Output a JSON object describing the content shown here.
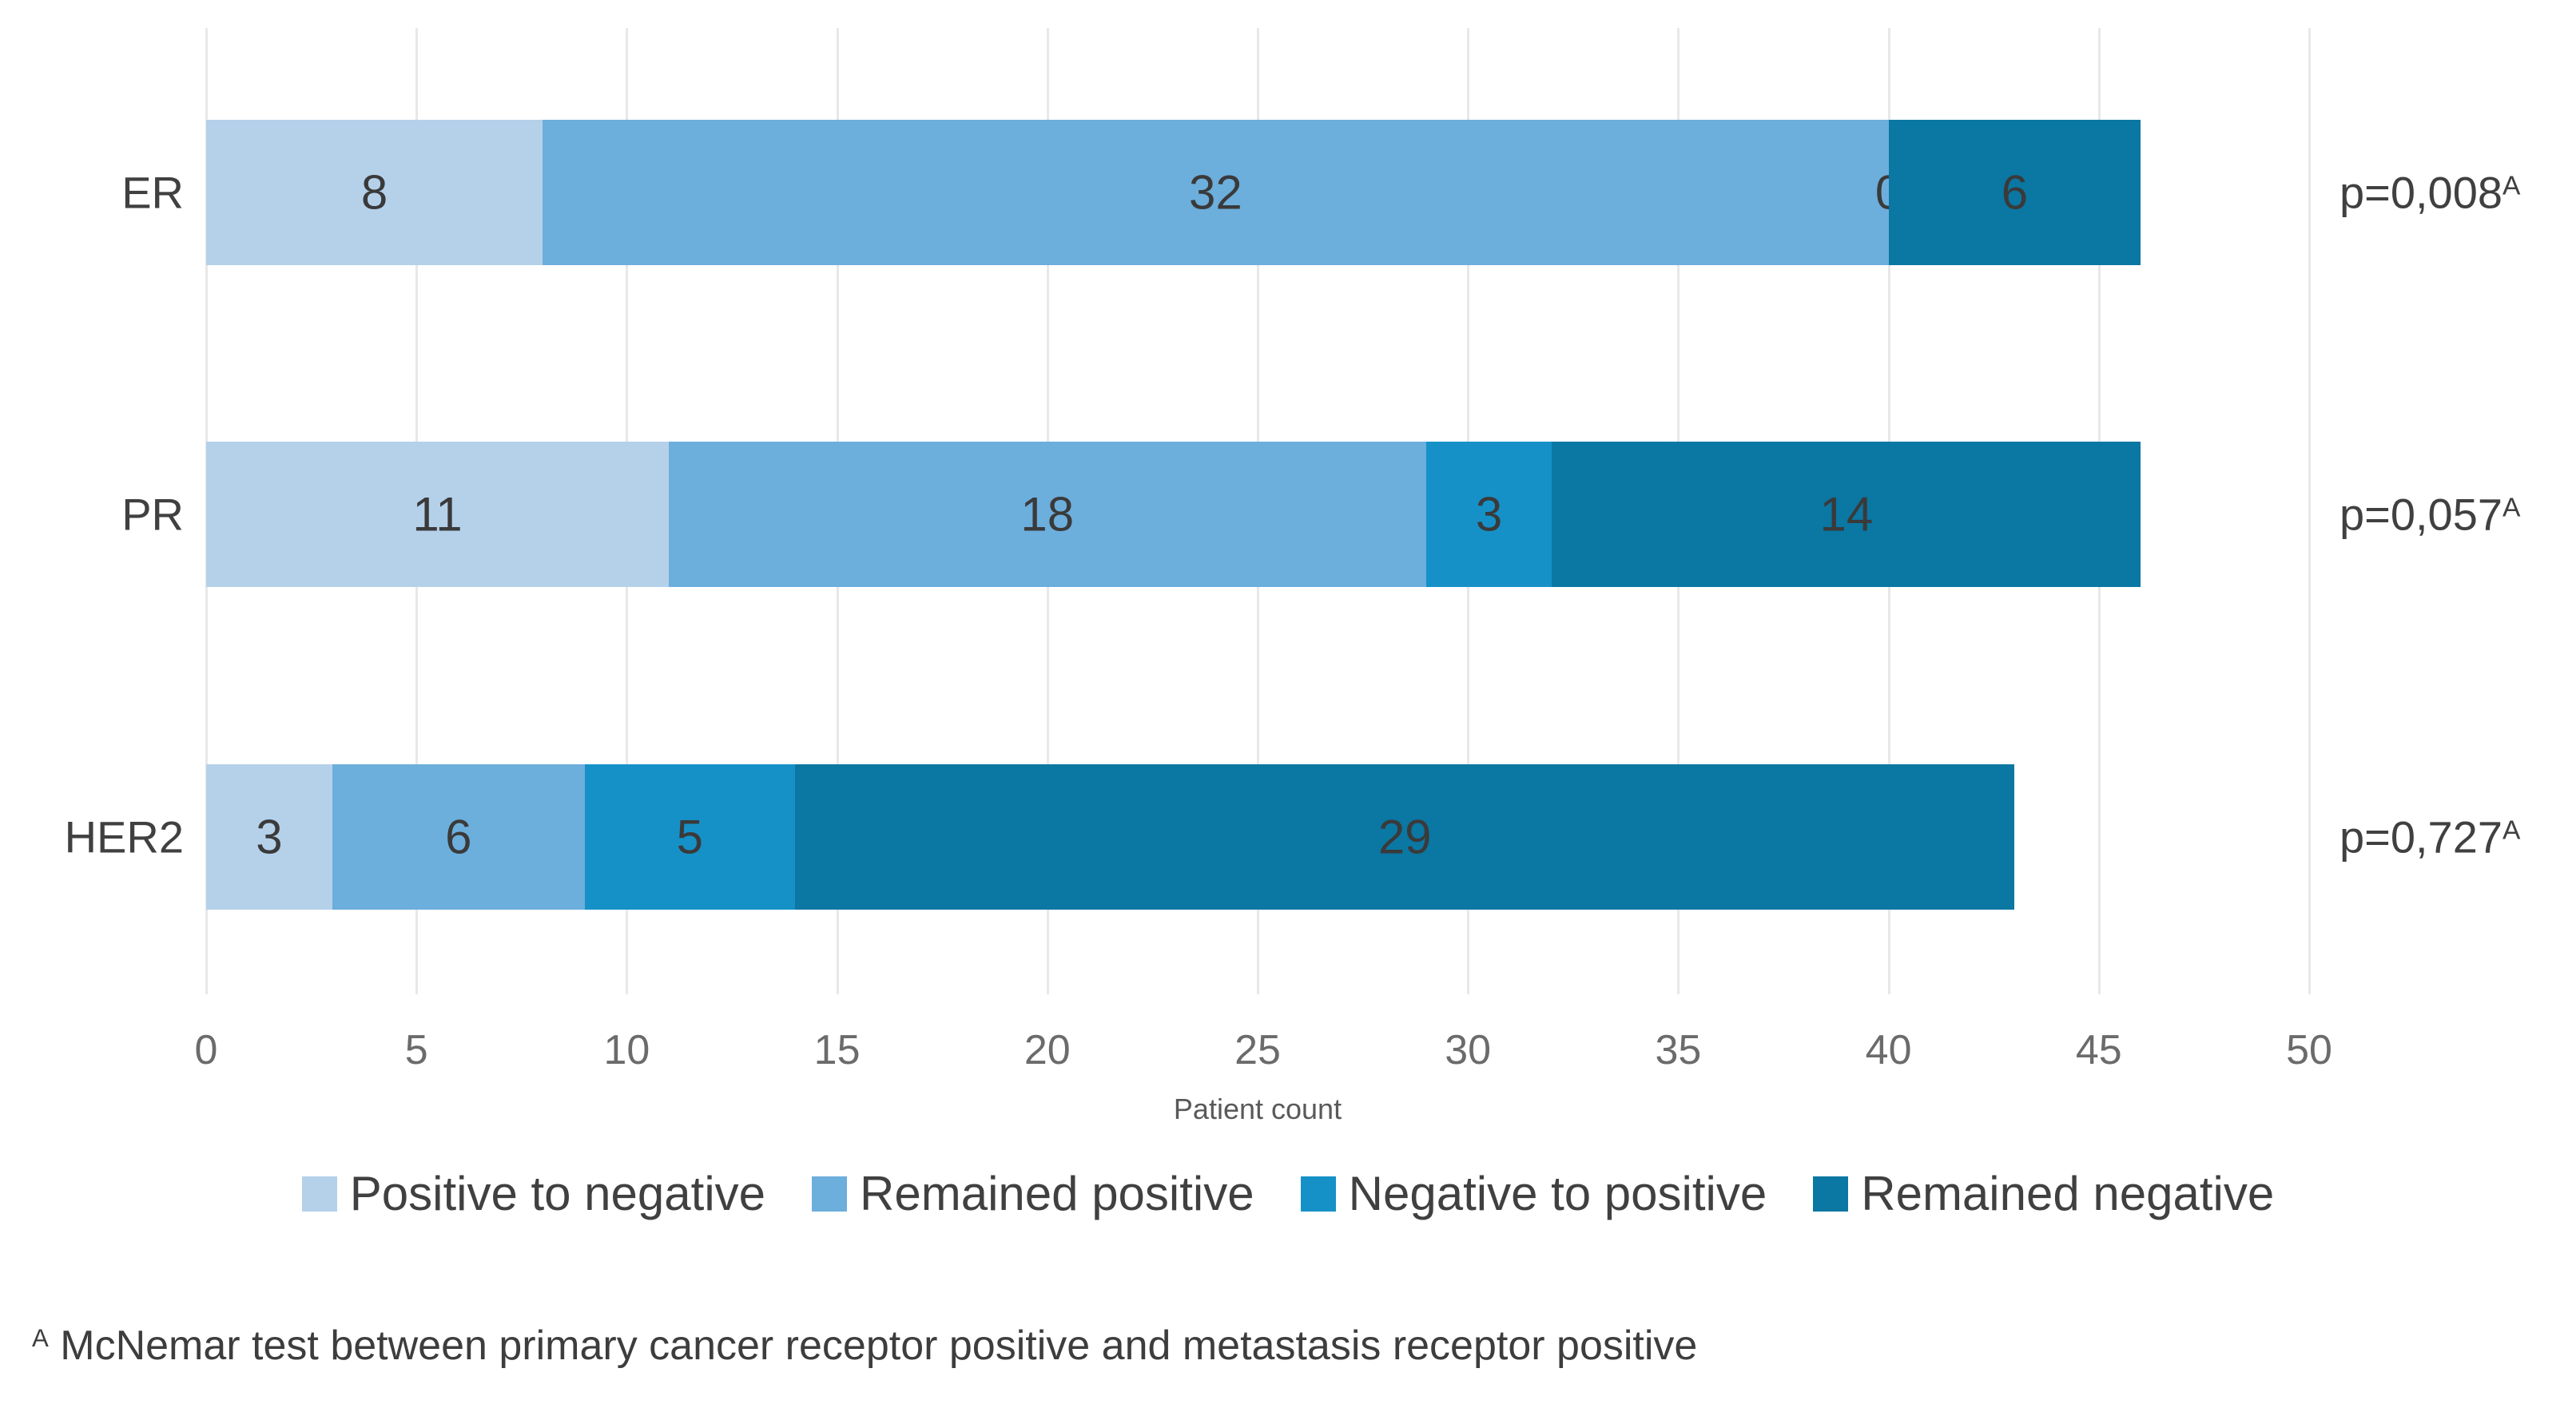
{
  "chart_data": {
    "type": "bar",
    "orientation": "horizontal",
    "stacked": true,
    "grid": true,
    "categories": [
      "ER",
      "PR",
      "HER2"
    ],
    "series": [
      {
        "name": "Positive to negative",
        "color": "#b5d1ea",
        "values": [
          8,
          11,
          3
        ]
      },
      {
        "name": "Remained positive",
        "color": "#6caedc",
        "values": [
          32,
          18,
          6
        ]
      },
      {
        "name": "Negative to positive",
        "color": "#1691c7",
        "values": [
          0,
          3,
          5
        ]
      },
      {
        "name": "Remained negative",
        "color": "#0b77a3",
        "values": [
          6,
          14,
          29
        ]
      }
    ],
    "totals": [
      46,
      46,
      43
    ],
    "p_values": [
      {
        "label": "p=0,008",
        "sup": "A"
      },
      {
        "label": "p=0,057",
        "sup": "A"
      },
      {
        "label": "p=0,727",
        "sup": "A"
      }
    ],
    "xlabel": "Patient count",
    "x_ticks": [
      0,
      5,
      10,
      15,
      20,
      25,
      30,
      35,
      40,
      45,
      50
    ],
    "xlim": [
      0,
      50
    ],
    "legend_position": "bottom",
    "colors": {
      "gridline": "#e8e8e8",
      "tick_text": "#6b6b6b",
      "label_text": "#3a3a3a"
    }
  },
  "footnote": {
    "sup": "A",
    "text": "McNemar test between primary cancer receptor positive and metastasis receptor positive"
  }
}
